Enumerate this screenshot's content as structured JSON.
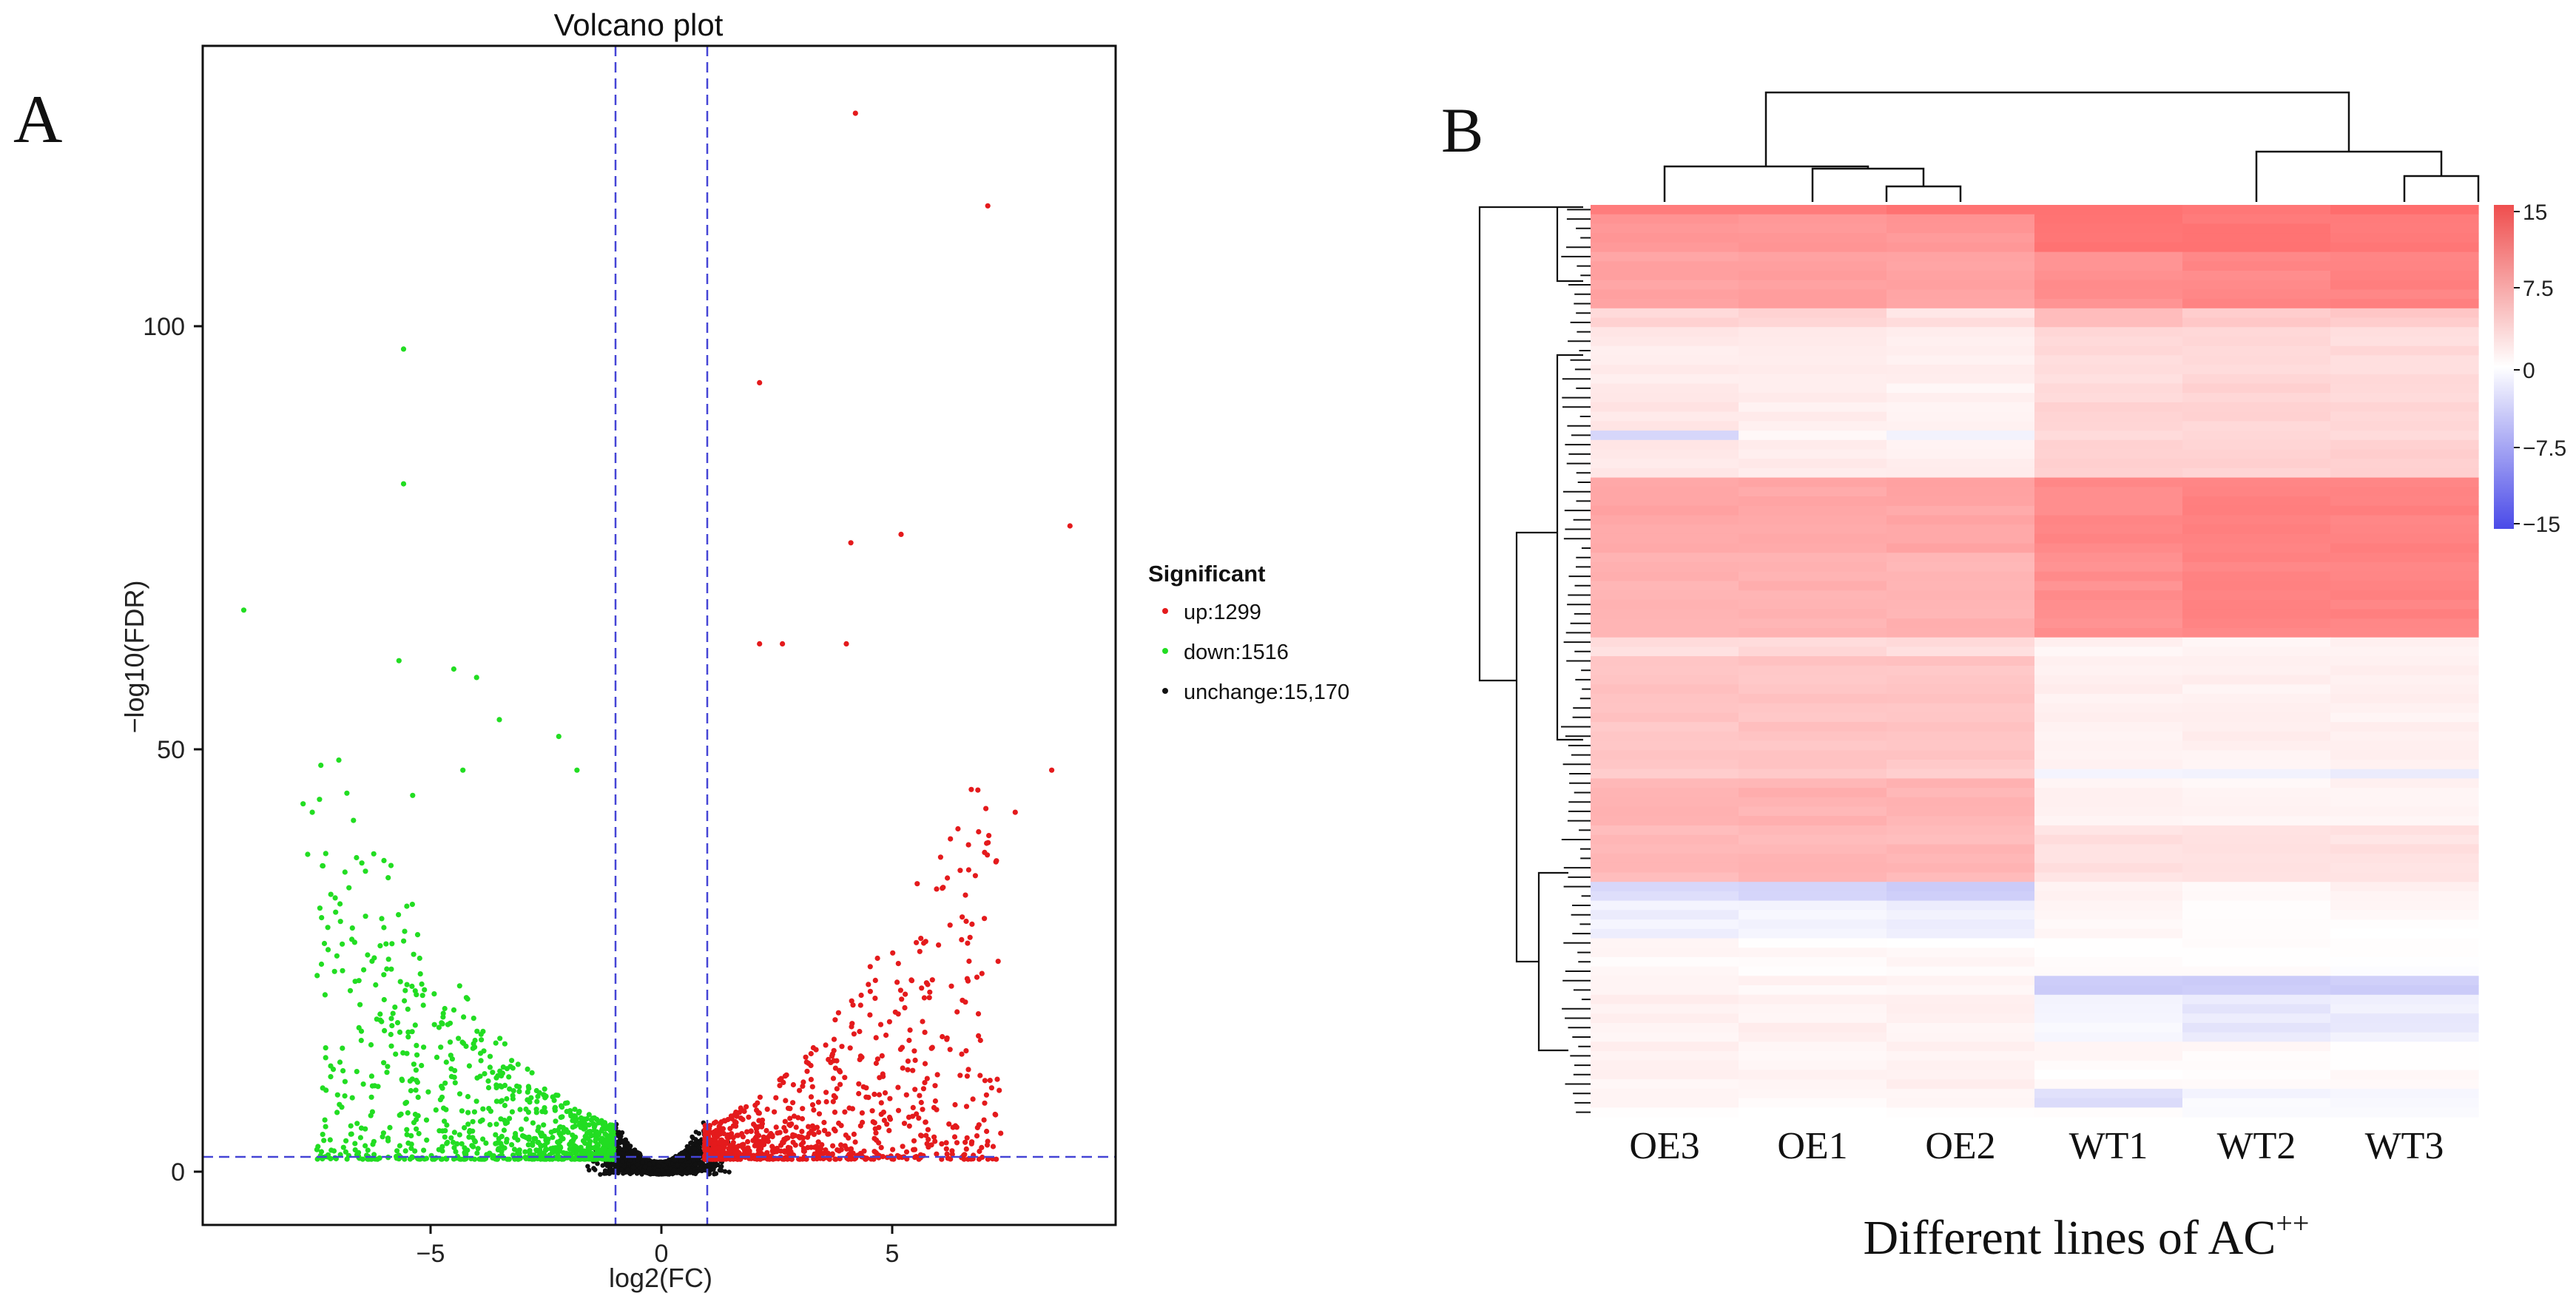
{
  "panel_a": {
    "label": "A"
  },
  "panel_b": {
    "label": "B"
  },
  "chart_data": [
    {
      "type": "scatter",
      "title": "Volcano plot",
      "xlabel": "log2(FC)",
      "ylabel": "−log10(FDR)",
      "xlim": [
        -10,
        10
      ],
      "ylim": [
        -6,
        134
      ],
      "xticks": [
        -5,
        0,
        5
      ],
      "xtick_labels": [
        "−5",
        "0",
        "5"
      ],
      "yticks": [
        0,
        50,
        100
      ],
      "ytick_labels": [
        "0",
        "50",
        "100"
      ],
      "thresholds": {
        "log2fc": [
          -1,
          1
        ],
        "neg_log10_fdr": 1.8
      },
      "legend": {
        "title": "Significant",
        "position": "right",
        "entries": [
          {
            "label": "up:1299",
            "color": "#e41a1c"
          },
          {
            "label": "down:1516",
            "color": "#22dd22"
          },
          {
            "label": "unchange:15,170",
            "color": "#111111"
          }
        ]
      },
      "series": [
        {
          "name": "up",
          "count": 1299,
          "color": "#e41a1c",
          "outliers": [
            [
              4.3,
              126
            ],
            [
              7.2,
              115
            ],
            [
              2.2,
              94
            ],
            [
              9.0,
              77
            ],
            [
              5.3,
              76
            ],
            [
              4.2,
              75
            ],
            [
              4.1,
              63
            ],
            [
              2.7,
              63
            ],
            [
              2.2,
              63
            ],
            [
              8.6,
              48
            ],
            [
              7.8,
              43
            ]
          ]
        },
        {
          "name": "down",
          "count": 1516,
          "color": "#22dd22",
          "outliers": [
            [
              -5.6,
              98
            ],
            [
              -5.6,
              82
            ],
            [
              -9.1,
              67
            ],
            [
              -5.7,
              61
            ],
            [
              -4.5,
              60
            ],
            [
              -4.0,
              59
            ],
            [
              -3.5,
              54
            ],
            [
              -2.2,
              52
            ],
            [
              -1.8,
              48
            ],
            [
              -7.8,
              44
            ],
            [
              -7.6,
              43
            ],
            [
              -7.7,
              38
            ],
            [
              -5.4,
              45
            ],
            [
              -4.3,
              48
            ]
          ]
        },
        {
          "name": "unchange",
          "count": 15170,
          "color": "#111111"
        }
      ]
    },
    {
      "type": "heatmap",
      "xlabel": "Different lines of AC",
      "xlabel_sup": "++",
      "columns": [
        "OE3",
        "OE1",
        "OE2",
        "WT1",
        "WT2",
        "WT3"
      ],
      "colorbar": {
        "min": -15,
        "max": 15,
        "ticks": [
          "15",
          "7.5",
          "0",
          "−7.5",
          "−15"
        ]
      },
      "row_blocks": [
        {
          "rows": 1,
          "values": [
            11.5,
            11.5,
            11.5,
            12.0,
            12.0,
            12.0
          ]
        },
        {
          "rows": 4,
          "values": [
            9.0,
            9.0,
            9.0,
            12.0,
            11.5,
            11.5
          ]
        },
        {
          "rows": 6,
          "values": [
            8.0,
            8.0,
            8.0,
            9.5,
            10.0,
            10.5
          ]
        },
        {
          "rows": 2,
          "values": [
            3.5,
            3.5,
            2.5,
            5.5,
            4.5,
            4.5
          ]
        },
        {
          "rows": 6,
          "values": [
            1.8,
            1.5,
            1.2,
            3.0,
            3.0,
            3.0
          ]
        },
        {
          "rows": 5,
          "values": [
            2.2,
            1.5,
            1.0,
            3.5,
            3.5,
            3.5
          ]
        },
        {
          "rows": 1,
          "values": [
            -3.5,
            0.8,
            -1.0,
            3.0,
            3.0,
            3.0
          ]
        },
        {
          "rows": 4,
          "values": [
            2.0,
            1.5,
            1.2,
            4.0,
            4.0,
            4.0
          ]
        },
        {
          "rows": 8,
          "values": [
            7.5,
            7.5,
            7.5,
            10.0,
            10.5,
            10.5
          ]
        },
        {
          "rows": 9,
          "values": [
            6.5,
            6.5,
            6.5,
            9.5,
            10.5,
            10.5
          ]
        },
        {
          "rows": 2,
          "values": [
            3.0,
            3.0,
            3.0,
            1.0,
            1.0,
            1.0
          ]
        },
        {
          "rows": 12,
          "values": [
            5.0,
            5.0,
            5.0,
            1.2,
            1.2,
            1.2
          ]
        },
        {
          "rows": 1,
          "values": [
            4.5,
            4.5,
            4.5,
            -0.8,
            -1.2,
            -1.2
          ]
        },
        {
          "rows": 5,
          "values": [
            6.5,
            6.5,
            6.5,
            1.0,
            1.0,
            1.0
          ]
        },
        {
          "rows": 6,
          "values": [
            6.0,
            6.0,
            6.0,
            2.5,
            2.5,
            2.5
          ]
        },
        {
          "rows": 2,
          "values": [
            -3.0,
            -3.5,
            -4.0,
            1.0,
            1.0,
            1.0
          ]
        },
        {
          "rows": 4,
          "values": [
            -1.2,
            -1.0,
            -1.5,
            0.5,
            0.5,
            0.5
          ]
        },
        {
          "rows": 4,
          "values": [
            0.5,
            0.5,
            0.5,
            0.0,
            0.0,
            0.0
          ]
        },
        {
          "rows": 2,
          "values": [
            0.8,
            0.8,
            0.8,
            -4.0,
            -4.5,
            -4.0
          ]
        },
        {
          "rows": 5,
          "values": [
            1.2,
            1.2,
            1.2,
            -0.8,
            -2.0,
            -1.5
          ]
        },
        {
          "rows": 5,
          "values": [
            1.0,
            1.0,
            1.0,
            0.5,
            0.5,
            0.5
          ]
        },
        {
          "rows": 2,
          "values": [
            0.8,
            0.8,
            0.8,
            -3.0,
            -0.5,
            -0.5
          ]
        },
        {
          "rows": 1,
          "values": [
            0.5,
            0.5,
            0.5,
            0.0,
            0.0,
            0.0
          ]
        }
      ]
    }
  ]
}
